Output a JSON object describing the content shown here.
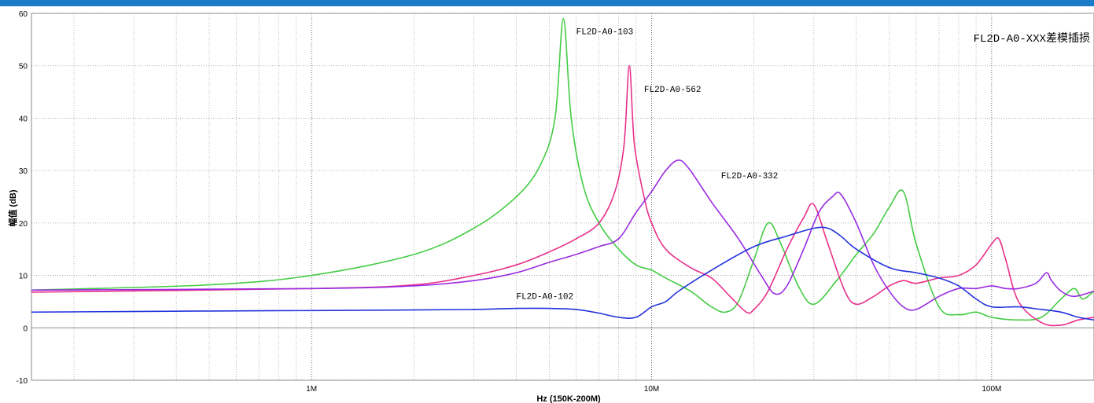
{
  "chart_data": {
    "type": "line",
    "title": "FL2D-A0-XXX差模插损",
    "xlabel": "Hz  (150K-200M)",
    "ylabel": "幅值 (dB)",
    "xscale": "log",
    "xlim": [
      150000,
      200000000
    ],
    "ylim": [
      -10,
      60
    ],
    "yticks": [
      -10,
      0,
      10,
      20,
      30,
      40,
      50,
      60
    ],
    "xticks": [
      {
        "value": 1000000,
        "label": "1M"
      },
      {
        "value": 10000000,
        "label": "10M"
      },
      {
        "value": 100000000,
        "label": "100M"
      }
    ],
    "grid": true,
    "colors": {
      "green": "#44cc44",
      "magenta": "#e8308a",
      "purple": "#9a2be2",
      "blue": "#2233dd"
    },
    "series": [
      {
        "name": "FL2D-A0-103",
        "color": "#44cc44",
        "x": [
          150000,
          500000,
          1000000,
          2000000,
          3000000,
          4000000,
          4700000,
          5200000,
          5500000,
          5800000,
          6300000,
          7000000,
          8000000,
          9000000,
          10000000,
          11000000,
          13000000,
          15000000,
          16500000,
          18000000,
          20000000,
          22000000,
          24000000,
          27000000,
          30000000,
          35000000,
          40000000,
          45000000,
          50000000,
          55000000,
          60000000,
          70000000,
          80000000,
          90000000,
          100000000,
          120000000,
          140000000,
          160000000,
          175000000,
          185000000,
          200000000
        ],
        "y": [
          7.2,
          8.2,
          10,
          14,
          19,
          25,
          31,
          40,
          59,
          40,
          27,
          20,
          15,
          12,
          11,
          9.5,
          7,
          4,
          3,
          5,
          13,
          20,
          16,
          8,
          4.5,
          9,
          14,
          18,
          23,
          26,
          16,
          4,
          2.5,
          3,
          2,
          1.5,
          2,
          5.5,
          7.5,
          5.5,
          7
        ]
      },
      {
        "name": "FL2D-A0-562",
        "color": "#e8308a",
        "x": [
          150000,
          1000000,
          2000000,
          3000000,
          4000000,
          5000000,
          6000000,
          7000000,
          7800000,
          8300000,
          8600000,
          8900000,
          9500000,
          10000000,
          11000000,
          13000000,
          15000000,
          17000000,
          19000000,
          20000000,
          22000000,
          25000000,
          28000000,
          30000000,
          33000000,
          37000000,
          40000000,
          45000000,
          50000000,
          55000000,
          60000000,
          70000000,
          80000000,
          90000000,
          100000000,
          105000000,
          110000000,
          120000000,
          140000000,
          160000000,
          180000000,
          200000000
        ],
        "y": [
          6.8,
          7.5,
          8.2,
          10,
          12,
          14.5,
          17,
          20,
          26,
          35,
          50,
          35,
          25,
          20,
          15,
          11.5,
          9.5,
          6,
          3,
          3.5,
          7,
          15,
          21,
          23.5,
          16,
          7,
          4.5,
          6,
          8,
          9,
          8.5,
          9.5,
          10,
          12,
          16,
          17,
          13,
          5,
          1,
          0.5,
          1.5,
          2
        ]
      },
      {
        "name": "FL2D-A0-332",
        "color": "#9a2be2",
        "x": [
          150000,
          1000000,
          2000000,
          3000000,
          4000000,
          5000000,
          6000000,
          7000000,
          8000000,
          9000000,
          10000000,
          11000000,
          12000000,
          13000000,
          15000000,
          18000000,
          21000000,
          23000000,
          25000000,
          28000000,
          31000000,
          34000000,
          36000000,
          40000000,
          45000000,
          50000000,
          55000000,
          60000000,
          70000000,
          80000000,
          90000000,
          100000000,
          110000000,
          120000000,
          135000000,
          145000000,
          150000000,
          160000000,
          175000000,
          200000000
        ],
        "y": [
          7.2,
          7.5,
          8,
          9,
          10.5,
          12.5,
          14,
          15.5,
          17,
          22,
          26,
          30,
          32,
          30,
          24,
          17,
          10,
          6.5,
          8,
          15,
          22,
          25,
          25.5,
          20,
          12,
          7,
          4,
          3.5,
          6,
          7.5,
          7.5,
          8,
          7.5,
          7.5,
          8.5,
          10.5,
          9,
          7,
          6,
          7
        ]
      },
      {
        "name": "FL2D-A0-102",
        "color": "#2233dd",
        "x": [
          150000,
          500000,
          1000000,
          2000000,
          3000000,
          4000000,
          5000000,
          6000000,
          7000000,
          8000000,
          9000000,
          10000000,
          11000000,
          12000000,
          15000000,
          20000000,
          25000000,
          30000000,
          33000000,
          36000000,
          40000000,
          50000000,
          60000000,
          70000000,
          80000000,
          90000000,
          100000000,
          120000000,
          140000000,
          160000000,
          180000000,
          200000000
        ],
        "y": [
          3,
          3.2,
          3.3,
          3.4,
          3.5,
          3.7,
          3.7,
          3.5,
          2.8,
          2,
          2,
          4,
          5,
          7,
          11,
          15.5,
          17.5,
          19,
          19,
          17.5,
          15,
          11.5,
          10.5,
          9.5,
          8,
          5.5,
          4,
          4,
          3.5,
          3,
          2,
          1.5
        ]
      }
    ],
    "annotations": [
      {
        "text": "FL2D-A0-103",
        "x": 6000000,
        "y": 56
      },
      {
        "text": "FL2D-A0-562",
        "x": 9500000,
        "y": 45
      },
      {
        "text": "FL2D-A0-332",
        "x": 16000000,
        "y": 28.5
      },
      {
        "text": "FL2D-A0-102",
        "x": 4000000,
        "y": 5.5
      }
    ]
  }
}
